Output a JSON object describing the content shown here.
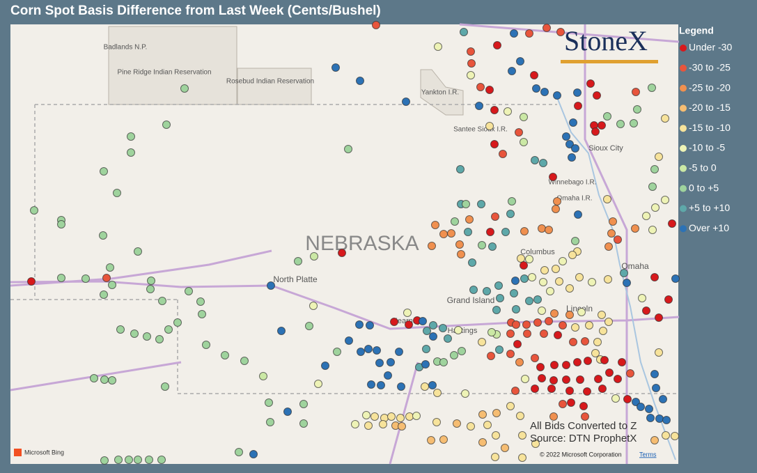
{
  "title": "Corn Spot Basis Difference from Last Week (Cents/Bushel)",
  "legend": {
    "title": "Legend",
    "items": [
      {
        "label": "Under -30",
        "color": "#d7191c"
      },
      {
        "label": "-30 to -25",
        "color": "#e8553c"
      },
      {
        "label": "-25 to -20",
        "color": "#f0904f"
      },
      {
        "label": "-20 to -15",
        "color": "#f6bd72"
      },
      {
        "label": "-15 to -10",
        "color": "#f7e39b"
      },
      {
        "label": "-10 to -5",
        "color": "#eef3b6"
      },
      {
        "label": "-5 to 0",
        "color": "#cbe8a5"
      },
      {
        "label": "0 to +5",
        "color": "#9fd39d"
      },
      {
        "label": "+5 to +10",
        "color": "#5ea8a9"
      },
      {
        "label": "Over +10",
        "color": "#2c72b5"
      }
    ]
  },
  "logo": "StoneX",
  "map_labels": [
    "Badlands N.P.",
    "Pine Ridge Indian Reservation",
    "Rosebud Indian Reservation",
    "Yankton I.R.",
    "Santee Sioux I.R.",
    "Sioux City",
    "Winnebago I.R.",
    "Omaha I.R.",
    "NEBRASKA",
    "North Platte",
    "Columbus",
    "Grand Island",
    "Kearney",
    "Hastings",
    "Lincoln",
    "Omaha"
  ],
  "notes": [
    "All Bids Converted to Z",
    "Source: DTN ProphetX"
  ],
  "attribution": {
    "provider": "Microsoft Bing",
    "copyright": "© 2022 Microsoft Corporation",
    "terms": "Terms"
  }
}
